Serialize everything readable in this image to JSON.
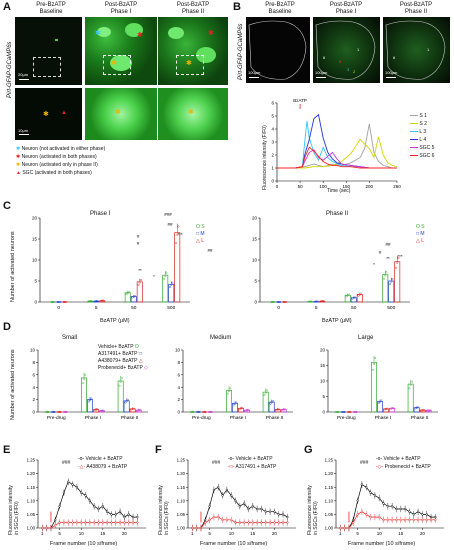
{
  "panels": {
    "A": {
      "letter": "A",
      "col_titles": [
        "Pre-BzATP\nBaseline",
        "Post-BzATP\nPhase I",
        "Post-BzATP\nPhase II"
      ],
      "side_label": "Pirt-GFAP-GCaMP6s",
      "scale1": "20μm",
      "scale2": "10μm",
      "legend": [
        {
          "sym": "✱",
          "color": "#3ec6ff",
          "text": "Neuron (not activated in either phase)"
        },
        {
          "sym": "✱",
          "color": "#e52222",
          "text": "Neuron (activated in both phases)"
        },
        {
          "sym": "✱",
          "color": "#f0b400",
          "text": "Neuron (activated only in phase II)"
        },
        {
          "sym": "▲",
          "color": "#e52222",
          "text": "SGC (activated in both phases)"
        }
      ]
    },
    "B": {
      "letter": "B",
      "col_titles": [
        "Pre-BzATP\nBaseline",
        "Post-BzATP\nPhase I",
        "Post-BzATP\nPhase II"
      ],
      "side_label": "Pirt-GFAP-GCaMP6s",
      "scale": "100μm",
      "trace_annot": "BzATP",
      "ylabel": "Fluorescence intensity (F/F0)",
      "xlabel": "Time (sec)",
      "legend": [
        {
          "name": "S",
          "num": "1",
          "color": "#a0a0a0"
        },
        {
          "name": "S",
          "num": "2",
          "color": "#d4d400"
        },
        {
          "name": "L",
          "num": "3",
          "color": "#33c3ff"
        },
        {
          "name": "L",
          "num": "4",
          "color": "#2233dd"
        },
        {
          "name": "SGC",
          "num": "5",
          "color": "#cc33cc"
        },
        {
          "name": "SGC",
          "num": "6",
          "color": "#ff2222"
        }
      ]
    },
    "C": {
      "letter": "C",
      "phase1": "Phase I",
      "phase2": "Phase II",
      "ylabel": "Number of activated neurons",
      "xlabel": "BzATP (μM)",
      "sig_labels": [
        "###",
        "#",
        "#",
        "##",
        "##",
        "**",
        "*",
        "***",
        "##",
        "*",
        "**",
        "***",
        "#"
      ],
      "legend": [
        {
          "sym": "O",
          "name": "S",
          "color": "#33aa33"
        },
        {
          "sym": "□",
          "name": "M",
          "color": "#2244cc"
        },
        {
          "sym": "△",
          "name": "L",
          "color": "#dd2222"
        }
      ]
    },
    "D": {
      "letter": "D",
      "titles": [
        "Small",
        "Medium",
        "Large"
      ],
      "ylabel": "Number of activated neurons",
      "groups": [
        "Pre-drug",
        "Phase I",
        "Phase II"
      ],
      "legend": [
        {
          "text": "Vehicle+ BzATP",
          "sym": "O",
          "color": "#33aa33"
        },
        {
          "text": "A317491+ BzATP",
          "sym": "□",
          "color": "#2244cc"
        },
        {
          "text": "A438079+ BzATP",
          "sym": "△",
          "color": "#dd2222"
        },
        {
          "text": "Probenecid+ BzATP",
          "sym": "◇",
          "color": "#cc33cc"
        }
      ]
    },
    "E": {
      "letter": "E",
      "legend1": "Vehicle + BzATP",
      "legend2": "A438079 + BzATP",
      "sig": "###"
    },
    "F": {
      "letter": "F",
      "legend1": "Vehicle + BzATP",
      "legend2": "A317491 + BzATP",
      "sig": "###"
    },
    "G": {
      "letter": "G",
      "legend1": "Vehicle + BzATP",
      "legend2": "Probenecid + BzATP",
      "sig": "###"
    },
    "efg_ylabel": "Fluorescence intensity\nin SGCs (F/F0)",
    "efg_xlabel": "Frame number (10 s/frame)"
  },
  "chart_data": [
    {
      "type": "line",
      "panel": "B",
      "xlabel": "Time (sec)",
      "ylabel": "Fluorescence intensity (F/F0)",
      "xlim": [
        0,
        260
      ],
      "ylim": [
        0,
        6
      ],
      "x_ticks": [
        0,
        50,
        100,
        150,
        200,
        260
      ],
      "y_ticks": [
        0,
        1,
        2,
        3,
        4,
        5,
        6
      ],
      "series": [
        {
          "name": "S 1",
          "x": [
            0,
            40,
            60,
            70,
            80,
            90,
            100,
            120,
            140,
            160,
            180,
            190,
            200,
            210,
            220,
            230,
            240,
            250,
            260
          ],
          "values": [
            1,
            1,
            1.1,
            1.2,
            1.3,
            1.2,
            1.1,
            1.3,
            1.2,
            1.4,
            1.8,
            2.5,
            4.4,
            2.2,
            1.5,
            1.2,
            1.1,
            1.0,
            1.0
          ]
        },
        {
          "name": "S 2",
          "x": [
            0,
            40,
            60,
            80,
            100,
            120,
            140,
            160,
            180,
            200,
            210,
            220,
            230,
            240,
            250,
            260
          ],
          "values": [
            1,
            1,
            1,
            1.1,
            1.1,
            1.2,
            1.5,
            2.1,
            3.2,
            2.5,
            1.8,
            3.4,
            2.0,
            1.4,
            1.2,
            1.1
          ]
        },
        {
          "name": "L 3",
          "x": [
            0,
            40,
            55,
            60,
            65,
            70,
            80,
            90,
            100,
            110,
            120,
            140,
            160,
            180,
            200,
            220,
            240,
            260
          ],
          "values": [
            1,
            1,
            1.1,
            3.0,
            4.6,
            3.3,
            2.2,
            1.6,
            2.6,
            1.8,
            1.5,
            1.2,
            1.1,
            1.1,
            1.0,
            1.0,
            1.0,
            1.0
          ]
        },
        {
          "name": "L 4",
          "x": [
            0,
            40,
            55,
            60,
            70,
            80,
            90,
            100,
            110,
            120,
            130,
            140,
            160,
            180,
            200,
            220,
            240,
            260
          ],
          "values": [
            1,
            1,
            1.1,
            2.0,
            3.2,
            4.8,
            5.1,
            3.3,
            2.2,
            1.7,
            1.4,
            1.3,
            1.2,
            1.1,
            1.0,
            1.0,
            1.0,
            1.0
          ]
        },
        {
          "name": "SGC 5",
          "x": [
            0,
            40,
            55,
            60,
            70,
            80,
            90,
            100,
            110,
            120,
            130,
            140,
            160,
            180,
            200,
            220,
            240,
            260
          ],
          "values": [
            1,
            1,
            1.1,
            1.5,
            2.2,
            2.4,
            1.8,
            1.6,
            1.9,
            2.2,
            1.7,
            1.3,
            1.2,
            1.1,
            1.0,
            1.0,
            1.0,
            1.0
          ]
        },
        {
          "name": "SGC 6",
          "x": [
            0,
            40,
            55,
            60,
            70,
            80,
            90,
            100,
            110,
            120,
            130,
            140,
            160,
            180,
            200,
            220,
            240,
            260
          ],
          "values": [
            1,
            1,
            1.1,
            1.8,
            2.6,
            2.3,
            1.9,
            1.5,
            1.3,
            1.2,
            1.2,
            1.1,
            1.1,
            1.0,
            1.0,
            1.0,
            1.0,
            1.0
          ]
        }
      ]
    },
    {
      "type": "bar",
      "panel": "C-Phase I",
      "categories": [
        "0",
        "5",
        "50",
        "500"
      ],
      "xlabel": "BzATP (μM)",
      "ylabel": "Number of activated neurons",
      "ylim": [
        0,
        20
      ],
      "y_ticks": [
        0,
        5,
        10,
        15,
        20
      ],
      "series": [
        {
          "name": "S",
          "values": [
            0,
            0.2,
            2.2,
            6.4
          ]
        },
        {
          "name": "M",
          "values": [
            0,
            0.2,
            1.3,
            4.2
          ]
        },
        {
          "name": "L",
          "values": [
            0,
            0.3,
            4.8,
            16.5
          ]
        }
      ]
    },
    {
      "type": "bar",
      "panel": "C-Phase II",
      "categories": [
        "0",
        "5",
        "50",
        "500"
      ],
      "xlabel": "BzATP (μM)",
      "ylabel": "Number of activated neurons",
      "ylim": [
        0,
        20
      ],
      "y_ticks": [
        0,
        5,
        10,
        15,
        20
      ],
      "series": [
        {
          "name": "S",
          "values": [
            0,
            0.1,
            1.6,
            6.5
          ]
        },
        {
          "name": "M",
          "values": [
            0,
            0.1,
            1.0,
            5.0
          ]
        },
        {
          "name": "L",
          "values": [
            0,
            0.2,
            1.8,
            9.6
          ]
        }
      ]
    },
    {
      "type": "bar",
      "panel": "D-Small",
      "categories": [
        "Pre-drug",
        "Phase I",
        "Phase II"
      ],
      "ylim": [
        0,
        10
      ],
      "y_ticks": [
        0,
        2,
        4,
        6,
        8,
        10
      ],
      "series": [
        {
          "name": "Vehicle+ BzATP",
          "values": [
            0,
            5.5,
            5.0
          ]
        },
        {
          "name": "A317491+ BzATP",
          "values": [
            0,
            2.0,
            1.8
          ]
        },
        {
          "name": "A438079+ BzATP",
          "values": [
            0,
            0.4,
            0.5
          ]
        },
        {
          "name": "Probenecid+ BzATP",
          "values": [
            0,
            0.2,
            0.3
          ]
        }
      ]
    },
    {
      "type": "bar",
      "panel": "D-Medium",
      "categories": [
        "Pre-drug",
        "Phase I",
        "Phase II"
      ],
      "ylim": [
        0,
        10
      ],
      "y_ticks": [
        0,
        2,
        4,
        6,
        8,
        10
      ],
      "series": [
        {
          "name": "Vehicle+ BzATP",
          "values": [
            0,
            3.5,
            3.2
          ]
        },
        {
          "name": "A317491+ BzATP",
          "values": [
            0,
            1.4,
            1.6
          ]
        },
        {
          "name": "A438079+ BzATP",
          "values": [
            0,
            0.6,
            0.4
          ]
        },
        {
          "name": "Probenecid+ BzATP",
          "values": [
            0,
            0.3,
            0.4
          ]
        }
      ]
    },
    {
      "type": "bar",
      "panel": "D-Large",
      "categories": [
        "Pre-drug",
        "Phase I",
        "Phase II"
      ],
      "ylim": [
        0,
        20
      ],
      "y_ticks": [
        0,
        5,
        10,
        15,
        20
      ],
      "series": [
        {
          "name": "Vehicle+ BzATP",
          "values": [
            0,
            16.0,
            9.0
          ]
        },
        {
          "name": "A317491+ BzATP",
          "values": [
            0,
            3.4,
            1.4
          ]
        },
        {
          "name": "A438079+ BzATP",
          "values": [
            0,
            1.0,
            0.6
          ]
        },
        {
          "name": "Probenecid+ BzATP",
          "values": [
            0,
            1.2,
            0.5
          ]
        }
      ]
    },
    {
      "type": "line",
      "panel": "E",
      "xlabel": "Frame number (10 s/frame)",
      "ylabel": "Fluorescence intensity in SGCs (F/F0)",
      "xlim": [
        0,
        25
      ],
      "ylim": [
        1.0,
        1.25
      ],
      "x_ticks": [
        1,
        5,
        10,
        15,
        20
      ],
      "y_ticks": [
        1.0,
        1.05,
        1.1,
        1.15,
        1.2,
        1.25
      ],
      "series": [
        {
          "name": "Vehicle + BzATP",
          "x": [
            1,
            2,
            3,
            4,
            5,
            6,
            7,
            8,
            9,
            10,
            11,
            12,
            13,
            14,
            15,
            16,
            17,
            18,
            19,
            20,
            21,
            22,
            23
          ],
          "values": [
            1.0,
            1.0,
            1.0,
            1.03,
            1.08,
            1.13,
            1.17,
            1.16,
            1.15,
            1.13,
            1.12,
            1.1,
            1.08,
            1.07,
            1.08,
            1.06,
            1.05,
            1.05,
            1.06,
            1.04,
            1.05,
            1.04,
            1.04
          ]
        },
        {
          "name": "A438079 + BzATP",
          "x": [
            1,
            2,
            3,
            4,
            5,
            6,
            7,
            8,
            9,
            10,
            11,
            12,
            13,
            14,
            15,
            16,
            17,
            18,
            19,
            20,
            21,
            22,
            23
          ],
          "values": [
            1.0,
            1.0,
            1.0,
            1.01,
            1.02,
            1.02,
            1.02,
            1.02,
            1.02,
            1.02,
            1.02,
            1.02,
            1.02,
            1.02,
            1.02,
            1.02,
            1.02,
            1.02,
            1.02,
            1.02,
            1.02,
            1.02,
            1.02
          ]
        }
      ]
    },
    {
      "type": "line",
      "panel": "F",
      "xlabel": "Frame number (10 s/frame)",
      "ylabel": "Fluorescence intensity in SGCs (F/F0)",
      "xlim": [
        0,
        25
      ],
      "ylim": [
        1.0,
        1.25
      ],
      "x_ticks": [
        1,
        5,
        10,
        15,
        20
      ],
      "y_ticks": [
        1.0,
        1.05,
        1.1,
        1.15,
        1.2,
        1.25
      ],
      "series": [
        {
          "name": "Vehicle + BzATP",
          "x": [
            1,
            2,
            3,
            4,
            5,
            6,
            7,
            8,
            9,
            10,
            11,
            12,
            13,
            14,
            15,
            16,
            17,
            18,
            19,
            20,
            21,
            22,
            23
          ],
          "values": [
            1.0,
            1.0,
            1.0,
            1.03,
            1.08,
            1.14,
            1.15,
            1.12,
            1.14,
            1.12,
            1.1,
            1.08,
            1.09,
            1.07,
            1.08,
            1.07,
            1.07,
            1.06,
            1.06,
            1.06,
            1.05,
            1.05,
            1.04
          ]
        },
        {
          "name": "A317491 + BzATP",
          "x": [
            1,
            2,
            3,
            4,
            5,
            6,
            7,
            8,
            9,
            10,
            11,
            12,
            13,
            14,
            15,
            16,
            17,
            18,
            19,
            20,
            21,
            22,
            23
          ],
          "values": [
            1.0,
            1.0,
            1.0,
            1.02,
            1.03,
            1.04,
            1.04,
            1.03,
            1.03,
            1.03,
            1.02,
            1.02,
            1.02,
            1.02,
            1.02,
            1.02,
            1.02,
            1.02,
            1.02,
            1.02,
            1.02,
            1.02,
            1.02
          ]
        }
      ]
    },
    {
      "type": "line",
      "panel": "G",
      "xlabel": "Frame number (10 s/frame)",
      "ylabel": "Fluorescence intensity in SGCs (F/F0)",
      "xlim": [
        0,
        25
      ],
      "ylim": [
        1.0,
        1.25
      ],
      "x_ticks": [
        1,
        5,
        10,
        15,
        20
      ],
      "y_ticks": [
        1.0,
        1.05,
        1.1,
        1.15,
        1.2,
        1.25
      ],
      "series": [
        {
          "name": "Vehicle + BzATP",
          "x": [
            1,
            2,
            3,
            4,
            5,
            6,
            7,
            8,
            9,
            10,
            11,
            12,
            13,
            14,
            15,
            16,
            17,
            18,
            19,
            20,
            21,
            22,
            23
          ],
          "values": [
            1.0,
            1.0,
            1.0,
            1.03,
            1.1,
            1.16,
            1.15,
            1.13,
            1.12,
            1.11,
            1.09,
            1.08,
            1.08,
            1.07,
            1.07,
            1.07,
            1.06,
            1.05,
            1.06,
            1.05,
            1.05,
            1.04,
            1.04
          ]
        },
        {
          "name": "Probenecid + BzATP",
          "x": [
            1,
            2,
            3,
            4,
            5,
            6,
            7,
            8,
            9,
            10,
            11,
            12,
            13,
            14,
            15,
            16,
            17,
            18,
            19,
            20,
            21,
            22,
            23
          ],
          "values": [
            1.0,
            1.0,
            1.0,
            1.02,
            1.05,
            1.06,
            1.05,
            1.04,
            1.04,
            1.04,
            1.03,
            1.03,
            1.03,
            1.03,
            1.03,
            1.03,
            1.03,
            1.03,
            1.03,
            1.03,
            1.03,
            1.03,
            1.03
          ]
        }
      ]
    }
  ]
}
